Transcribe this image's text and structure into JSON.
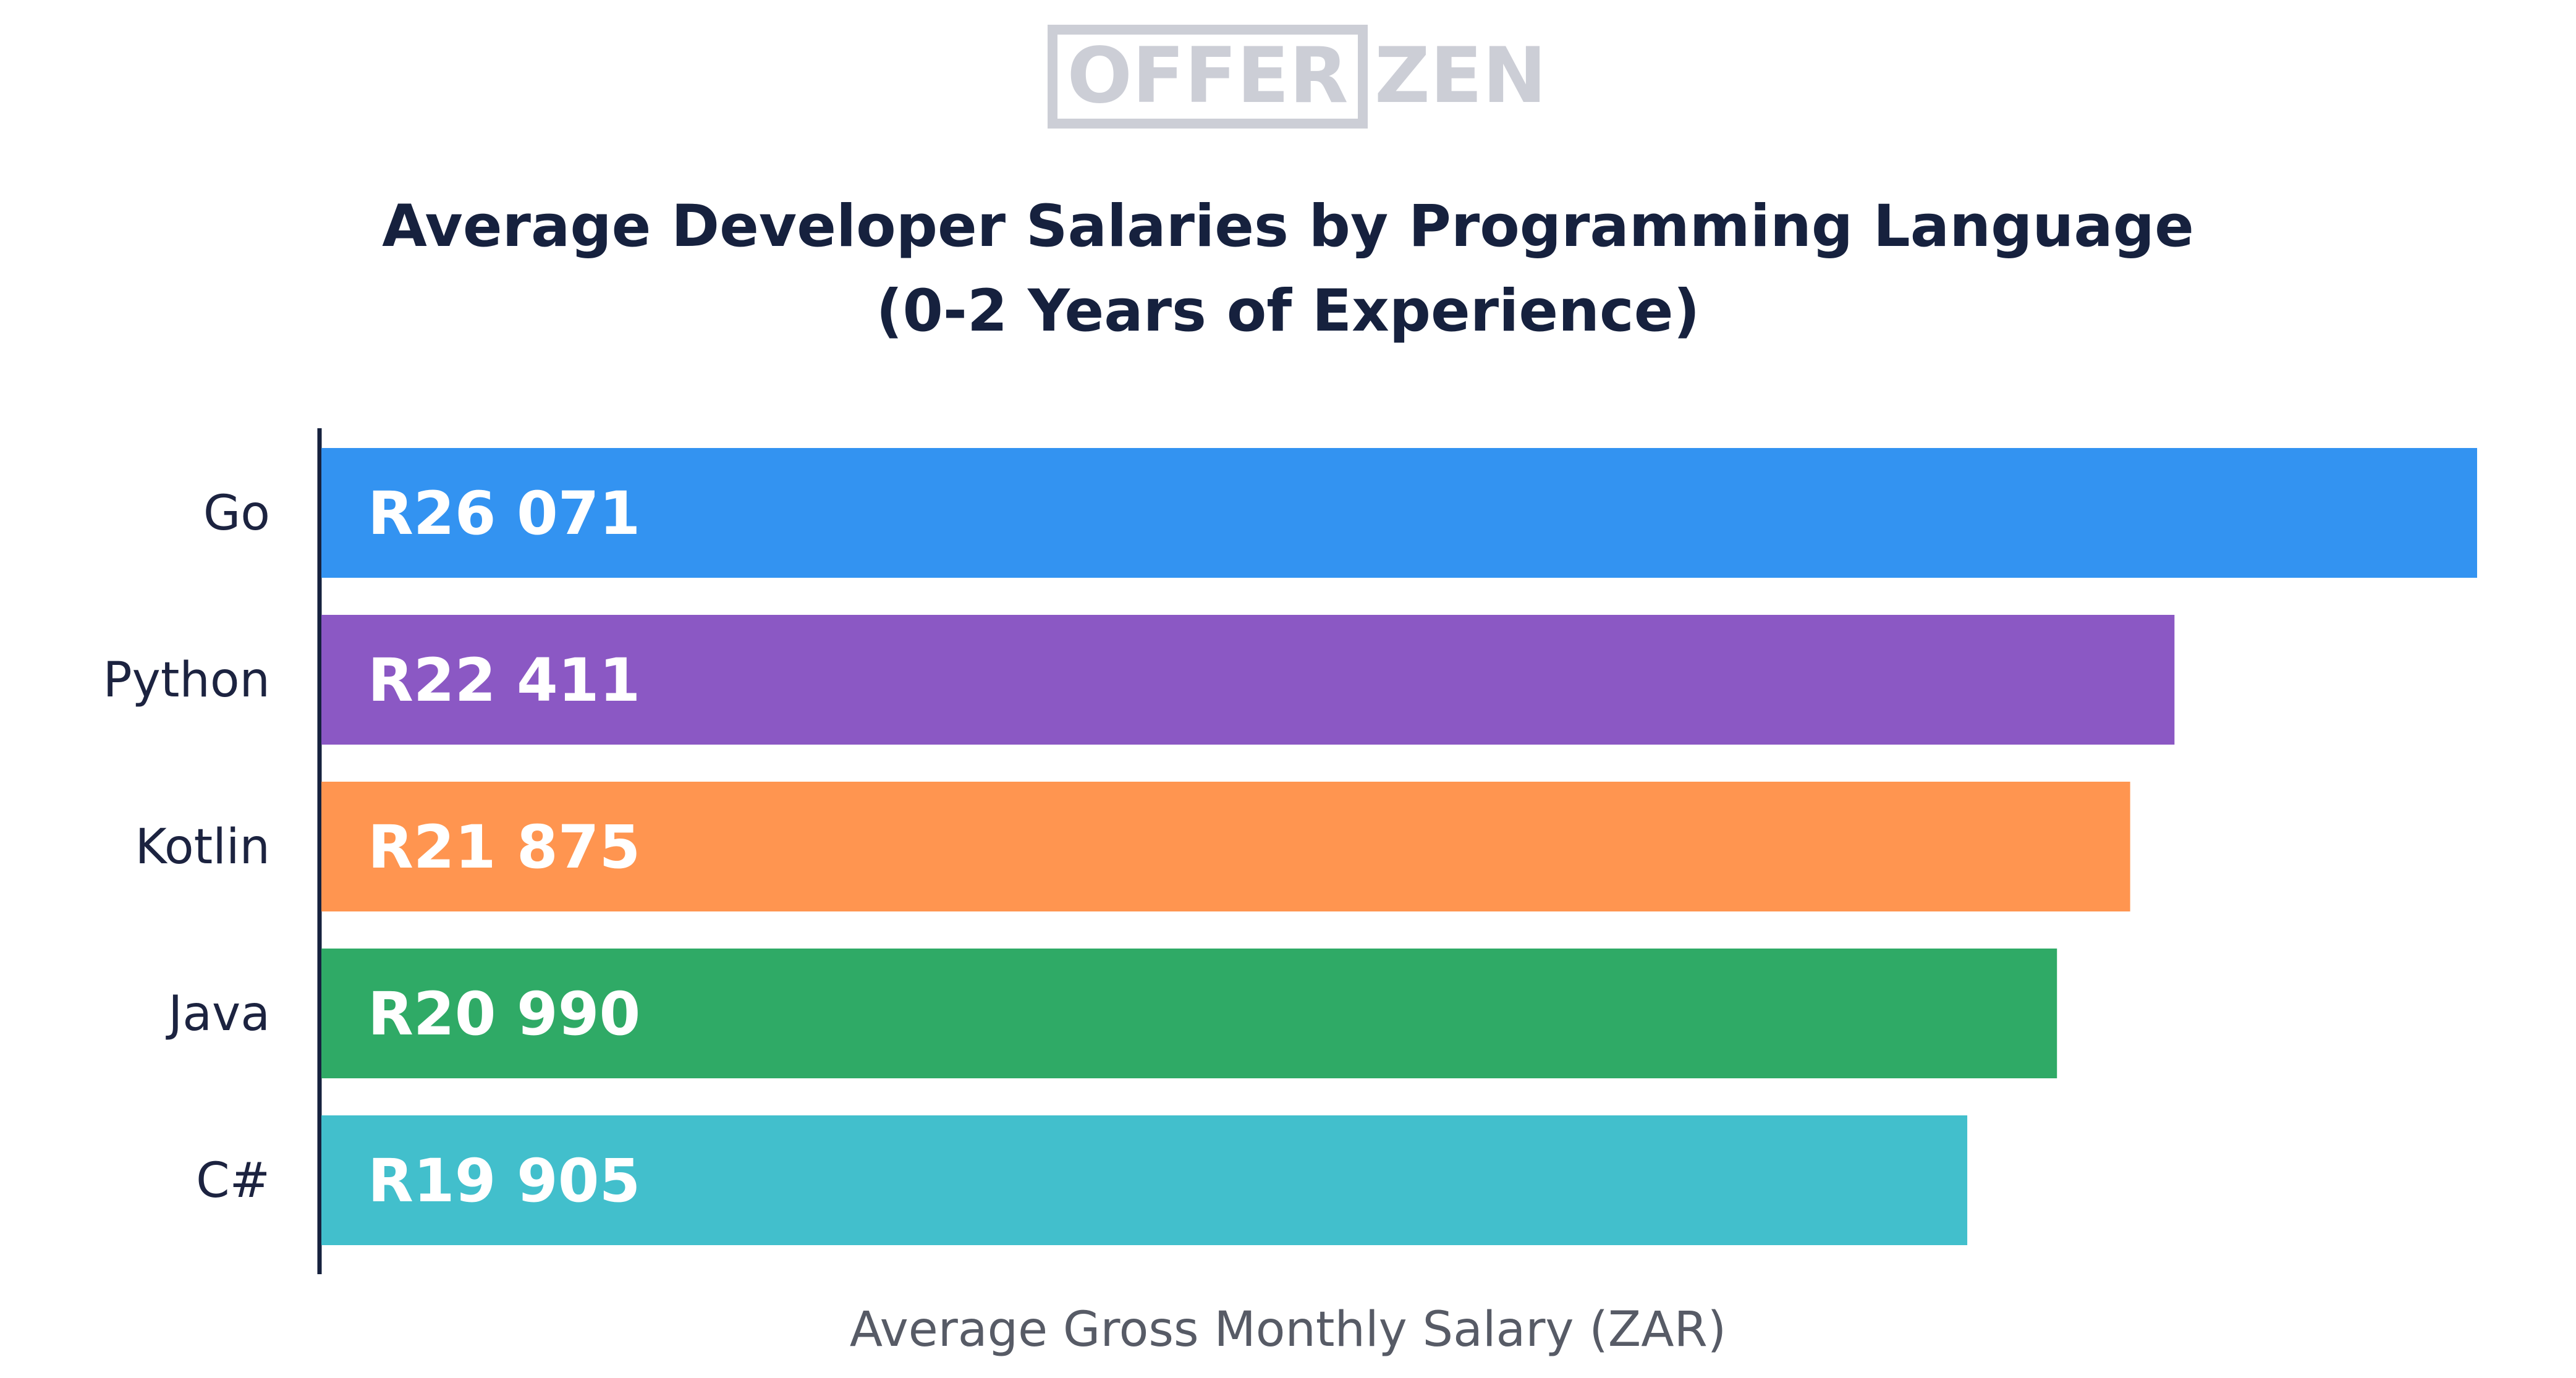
{
  "logo": {
    "left": "OFFER",
    "right": "ZEN",
    "color": "#ccced6"
  },
  "chart_data": {
    "type": "bar",
    "orientation": "horizontal",
    "title": "Average Developer Salaries by Programming Language",
    "subtitle": "(0-2 Years of Experience)",
    "xlabel": "Average Gross Monthly Salary (ZAR)",
    "ylabel": "",
    "xlim": [
      0,
      27000
    ],
    "grid": false,
    "legend": "none",
    "categories": [
      "Go",
      "Python",
      "Kotlin",
      "Java",
      "C#"
    ],
    "values": [
      26071,
      22411,
      21875,
      20990,
      19905
    ],
    "data_labels": [
      "R26 071",
      "R22 411",
      "R21 875",
      "R20 990",
      "R19 905"
    ],
    "colors": [
      "#3393f1",
      "#8b58c4",
      "#ff9550",
      "#2faa66",
      "#42bfcc"
    ]
  }
}
